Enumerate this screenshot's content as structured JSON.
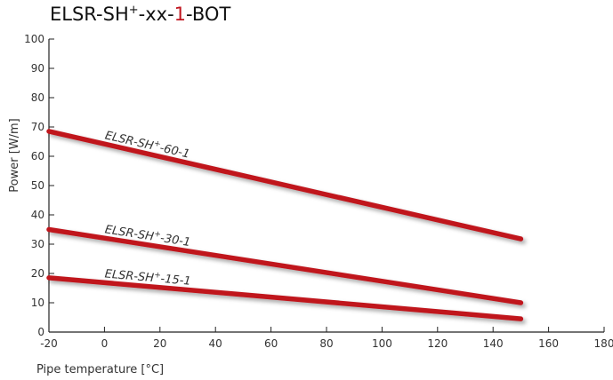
{
  "title": {
    "prefix": "ELSR-SH",
    "sup": "+",
    "middle": "-xx-",
    "accent": "1",
    "suffix": "-BOT",
    "accent_color": "#c0151f"
  },
  "chart_data": {
    "type": "line",
    "xlabel": "Pipe temperature [°C]",
    "ylabel": "Power [W/m]",
    "xlim": [
      -20,
      180
    ],
    "ylim": [
      0,
      100
    ],
    "xticks": [
      -20,
      0,
      20,
      40,
      60,
      80,
      100,
      120,
      140,
      160,
      180
    ],
    "yticks": [
      0,
      10,
      20,
      30,
      40,
      50,
      60,
      70,
      80,
      90,
      100
    ],
    "grid": false,
    "line_color": "#c0151f",
    "series": [
      {
        "name": "ELSR-SH+-60-1",
        "label": {
          "prefix": "ELSR-SH",
          "sup": "+",
          "suffix": "-60-1"
        },
        "x": [
          -20,
          150
        ],
        "y": [
          68.5,
          31.8
        ]
      },
      {
        "name": "ELSR-SH+-30-1",
        "label": {
          "prefix": "ELSR-SH",
          "sup": "+",
          "suffix": "-30-1"
        },
        "x": [
          -20,
          150
        ],
        "y": [
          35,
          10
        ]
      },
      {
        "name": "ELSR-SH+-15-1",
        "label": {
          "prefix": "ELSR-SH",
          "sup": "+",
          "suffix": "-15-1"
        },
        "x": [
          -20,
          150
        ],
        "y": [
          18.5,
          4.5
        ]
      }
    ]
  }
}
